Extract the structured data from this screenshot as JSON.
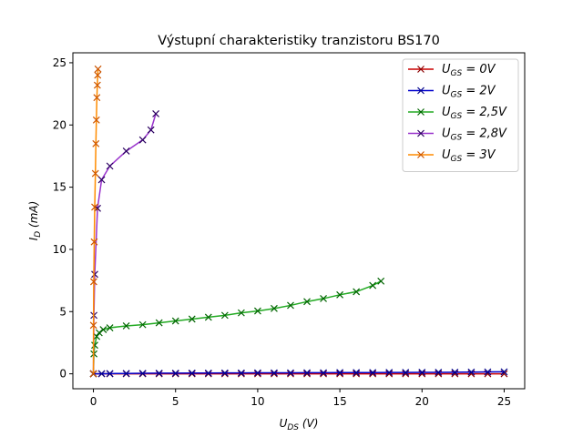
{
  "chart_data": {
    "type": "line",
    "title": "Výstupní charakteristiky tranzistoru BS170",
    "xlabel": {
      "main": "U",
      "sub": "DS",
      "rest": " (V)"
    },
    "ylabel": {
      "main": "I",
      "sub": "D",
      "rest": " (mA)"
    },
    "xlim": [
      -1.25,
      26.25
    ],
    "ylim": [
      -1.2,
      25.8
    ],
    "xticks": [
      0,
      5,
      10,
      15,
      20,
      25
    ],
    "yticks": [
      0,
      5,
      10,
      15,
      20,
      25
    ],
    "grid": false,
    "legend_position": "top-right",
    "series": [
      {
        "name": "U_GS = 0V",
        "legend": {
          "main": "U",
          "sub": "GS",
          "rest": " = 0V"
        },
        "line_color": "#cc0000",
        "marker_color": "#8b0000",
        "points": [
          [
            0,
            0
          ],
          [
            0.5,
            0
          ],
          [
            1,
            0
          ],
          [
            2,
            0
          ],
          [
            3,
            0
          ],
          [
            4,
            0
          ],
          [
            5,
            0
          ],
          [
            6,
            0
          ],
          [
            7,
            0
          ],
          [
            8,
            0
          ],
          [
            9,
            0
          ],
          [
            10,
            0
          ],
          [
            11,
            0
          ],
          [
            12,
            0
          ],
          [
            13,
            0
          ],
          [
            14,
            0
          ],
          [
            15,
            0
          ],
          [
            16,
            0
          ],
          [
            17,
            0
          ],
          [
            18,
            0
          ],
          [
            19,
            0
          ],
          [
            20,
            0
          ],
          [
            21,
            0
          ],
          [
            22,
            0
          ],
          [
            23,
            0
          ],
          [
            24,
            0
          ],
          [
            25,
            0
          ]
        ]
      },
      {
        "name": "U_GS = 2V",
        "legend": {
          "main": "U",
          "sub": "GS",
          "rest": " = 2V"
        },
        "line_color": "#0000cc",
        "marker_color": "#00008b",
        "points": [
          [
            0,
            0
          ],
          [
            0.5,
            0.01
          ],
          [
            1,
            0.02
          ],
          [
            2,
            0.03
          ],
          [
            3,
            0.04
          ],
          [
            4,
            0.05
          ],
          [
            5,
            0.05
          ],
          [
            6,
            0.06
          ],
          [
            7,
            0.06
          ],
          [
            8,
            0.07
          ],
          [
            9,
            0.07
          ],
          [
            10,
            0.08
          ],
          [
            11,
            0.08
          ],
          [
            12,
            0.08
          ],
          [
            13,
            0.09
          ],
          [
            14,
            0.09
          ],
          [
            15,
            0.1
          ],
          [
            16,
            0.1
          ],
          [
            17,
            0.1
          ],
          [
            18,
            0.11
          ],
          [
            19,
            0.11
          ],
          [
            20,
            0.12
          ],
          [
            21,
            0.12
          ],
          [
            22,
            0.13
          ],
          [
            23,
            0.14
          ],
          [
            24,
            0.15
          ],
          [
            25,
            0.16
          ]
        ]
      },
      {
        "name": "U_GS = 2,5V",
        "legend": {
          "main": "U",
          "sub": "GS",
          "rest": " = 2,5V"
        },
        "line_color": "#22aa22",
        "marker_color": "#006400",
        "points": [
          [
            0,
            0
          ],
          [
            0.03,
            1.6
          ],
          [
            0.08,
            2.3
          ],
          [
            0.2,
            3.0
          ],
          [
            0.35,
            3.3
          ],
          [
            0.6,
            3.55
          ],
          [
            1,
            3.7
          ],
          [
            2,
            3.85
          ],
          [
            3,
            3.95
          ],
          [
            4,
            4.1
          ],
          [
            5,
            4.25
          ],
          [
            6,
            4.4
          ],
          [
            7,
            4.55
          ],
          [
            8,
            4.7
          ],
          [
            9,
            4.9
          ],
          [
            10,
            5.05
          ],
          [
            11,
            5.25
          ],
          [
            12,
            5.5
          ],
          [
            13,
            5.8
          ],
          [
            14,
            6.05
          ],
          [
            15,
            6.35
          ],
          [
            16,
            6.6
          ],
          [
            17,
            7.1
          ],
          [
            17.5,
            7.45
          ]
        ]
      },
      {
        "name": "U_GS = 2,8V",
        "legend": {
          "main": "U",
          "sub": "GS",
          "rest": " = 2,8V"
        },
        "line_color": "#9933cc",
        "marker_color": "#2a0060",
        "points": [
          [
            0,
            0
          ],
          [
            0.03,
            4.7
          ],
          [
            0.08,
            8.0
          ],
          [
            0.25,
            13.3
          ],
          [
            0.5,
            15.6
          ],
          [
            1,
            16.7
          ],
          [
            2,
            17.9
          ],
          [
            3,
            18.8
          ],
          [
            3.5,
            19.6
          ],
          [
            3.8,
            20.9
          ]
        ]
      },
      {
        "name": "U_GS = 3V",
        "legend": {
          "main": "U",
          "sub": "GS",
          "rest": " = 3V"
        },
        "line_color": "#ff8c00",
        "marker_color": "#cc5500",
        "points": [
          [
            0,
            0
          ],
          [
            0.005,
            3.9
          ],
          [
            0.02,
            7.4
          ],
          [
            0.05,
            10.6
          ],
          [
            0.08,
            13.4
          ],
          [
            0.12,
            16.1
          ],
          [
            0.15,
            18.5
          ],
          [
            0.18,
            20.4
          ],
          [
            0.21,
            22.2
          ],
          [
            0.24,
            23.2
          ],
          [
            0.26,
            24.0
          ],
          [
            0.28,
            24.5
          ]
        ]
      }
    ]
  }
}
